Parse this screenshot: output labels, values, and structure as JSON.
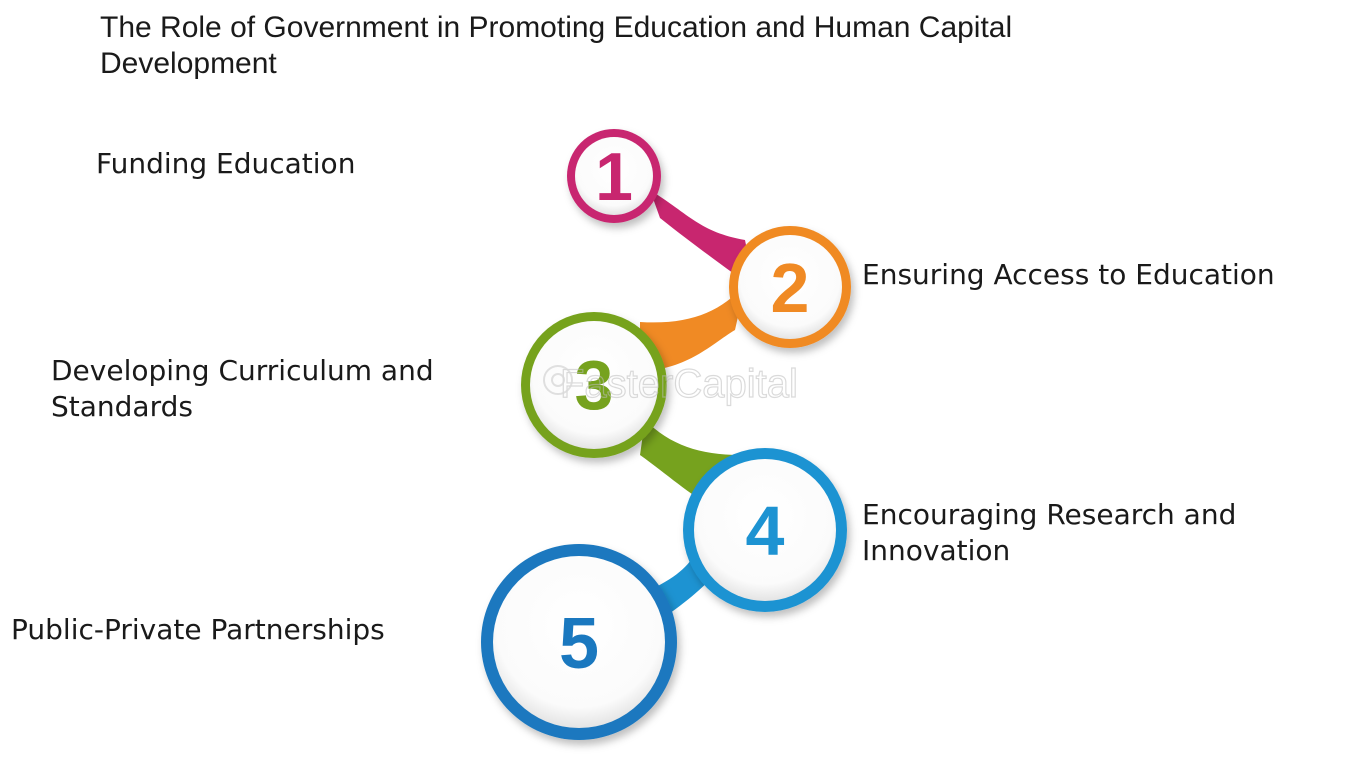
{
  "title": "The Role of Government in Promoting Education and Human Capital Development",
  "watermark": "FasterCapital",
  "steps": [
    {
      "number": "1",
      "label": "Funding Education",
      "color": "#c8266f"
    },
    {
      "number": "2",
      "label": "Ensuring Access to Education",
      "color": "#f08a24"
    },
    {
      "number": "3",
      "label": "Developing Curriculum and Standards",
      "color": "#76a21e"
    },
    {
      "number": "4",
      "label": "Encouraging Research and Innovation",
      "color": "#1d93d2"
    },
    {
      "number": "5",
      "label": "Public-Private Partnerships",
      "color": "#1a78bf"
    }
  ]
}
